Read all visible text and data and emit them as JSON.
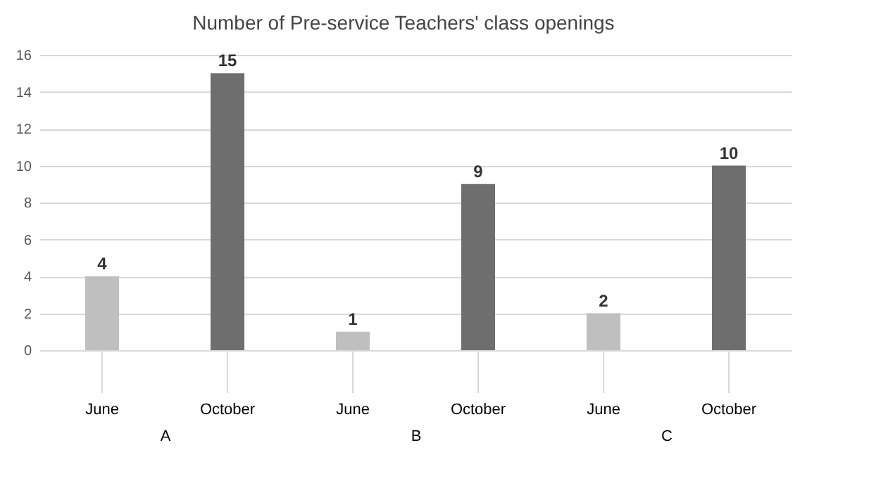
{
  "chart_data": {
    "type": "bar",
    "title": "Number of Pre-service Teachers' class openings",
    "categories": [
      "A",
      "B",
      "C"
    ],
    "series": [
      {
        "name": "June",
        "color": "#bfbfbf",
        "values": [
          4,
          1,
          2
        ]
      },
      {
        "name": "October",
        "color": "#6e6e6e",
        "values": [
          15,
          9,
          10
        ]
      }
    ],
    "ylim": [
      0,
      16
    ],
    "yticks": [
      0,
      2,
      4,
      6,
      8,
      10,
      12,
      14,
      16
    ],
    "grid": true,
    "data_labels": true
  }
}
